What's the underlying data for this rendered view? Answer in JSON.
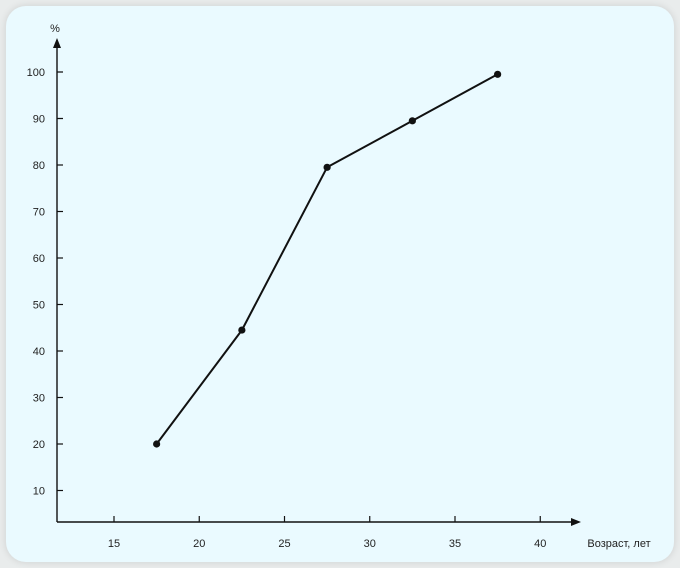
{
  "chart_data": {
    "type": "line",
    "title": "",
    "xlabel": "Возраст, лет",
    "ylabel": "%",
    "xlim": [
      12.5,
      42.5
    ],
    "ylim": [
      3,
      106
    ],
    "x_ticks": [
      15,
      20,
      25,
      30,
      35,
      40
    ],
    "y_ticks": [
      10,
      20,
      30,
      40,
      50,
      60,
      70,
      80,
      90,
      100
    ],
    "grid": false,
    "series": [
      {
        "x": [
          17.5,
          22.5,
          27.5,
          32.5,
          37.5
        ],
        "y": [
          20,
          44.5,
          79.5,
          89.5,
          99.5
        ]
      }
    ],
    "colors": {
      "line": "#111111",
      "axis": "#111111",
      "background": "#eafaff"
    }
  }
}
